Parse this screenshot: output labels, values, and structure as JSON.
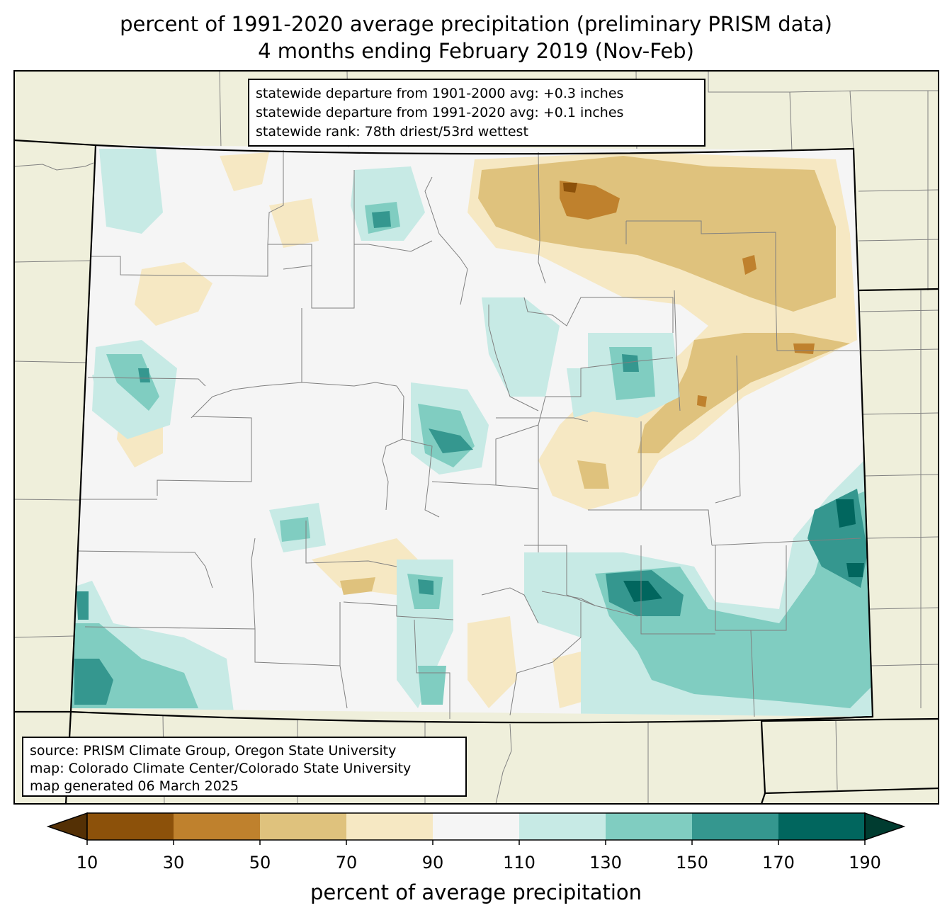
{
  "title": {
    "line1": "percent of 1991-2020 average precipitation (preliminary PRISM data)",
    "line2": "4 months ending February 2019 (Nov-Feb)"
  },
  "stats_box": {
    "lines": [
      "statewide departure from 1901-2000 avg: +0.3 inches",
      "statewide departure from 1991-2020 avg: +0.1 inches",
      "statewide rank: 78th driest/53rd wettest"
    ]
  },
  "source_box": {
    "lines": [
      "source: PRISM Climate Group, Oregon State University",
      "map: Colorado Climate Center/Colorado State University",
      "map generated 06 March 2025"
    ]
  },
  "colorbar": {
    "label": "percent of average precipitation",
    "ticks": [
      "10",
      "30",
      "50",
      "70",
      "90",
      "110",
      "130",
      "150",
      "170",
      "190"
    ],
    "under_color": "#543005",
    "over_color": "#003c30",
    "colors": [
      "#8c510a",
      "#bf812d",
      "#dfc27d",
      "#f6e8c3",
      "#f5f5f5",
      "#c7eae5",
      "#80cdc1",
      "#35978f",
      "#01665e"
    ]
  },
  "map_colors": {
    "land": "#efefdb",
    "state_border": "#000000",
    "county_border": "#808080"
  }
}
